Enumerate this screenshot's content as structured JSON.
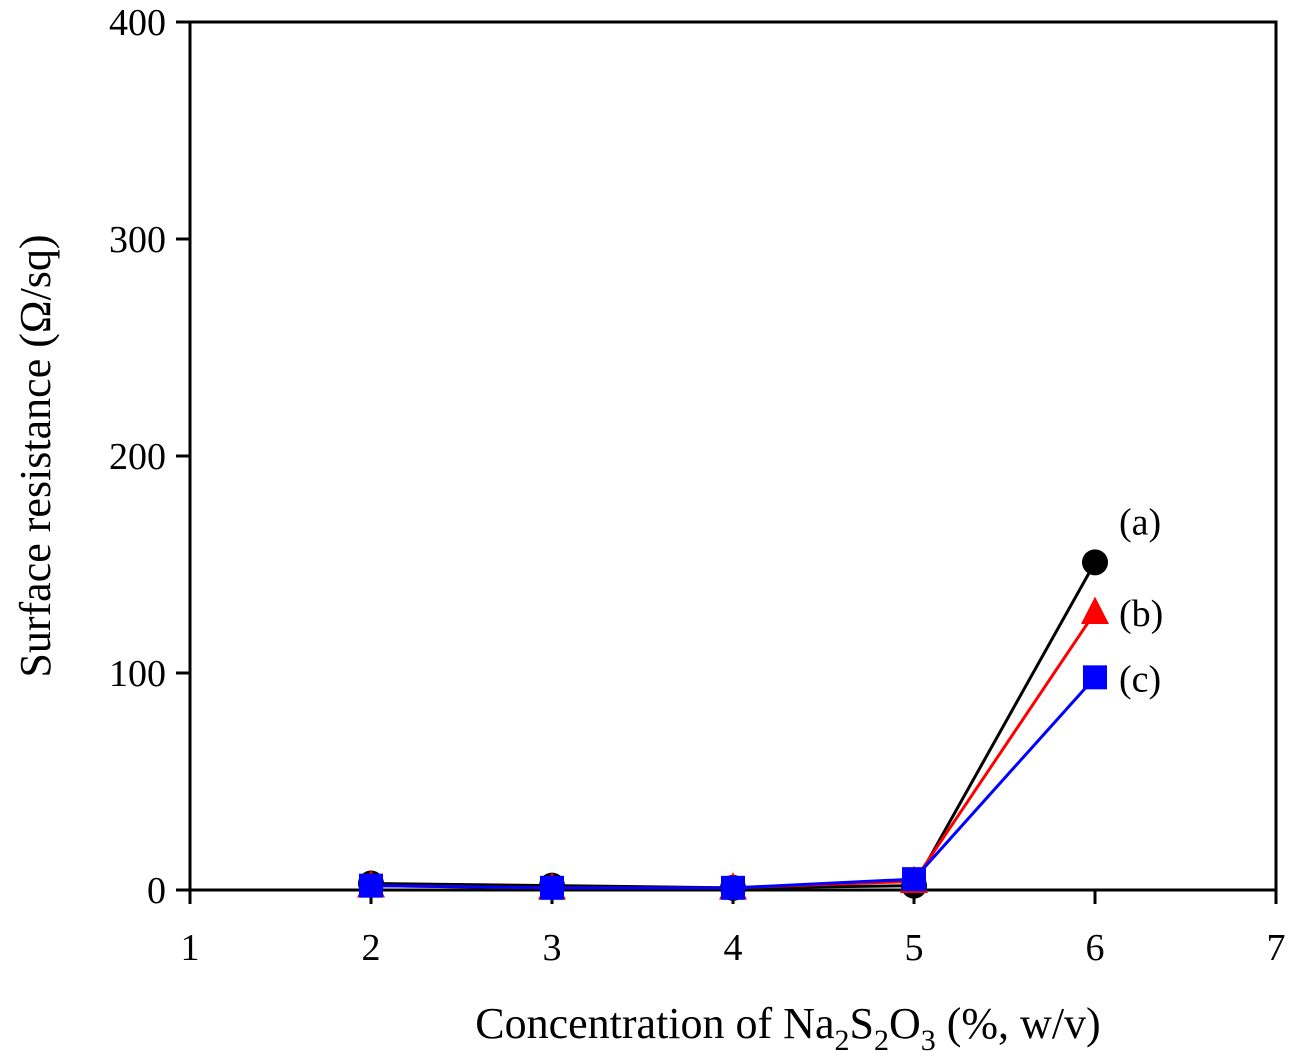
{
  "chart_data": {
    "type": "line",
    "title": "",
    "xlabel": {
      "parts": [
        {
          "text": "Concentration of Na",
          "sub": false
        },
        {
          "text": "2",
          "sub": true
        },
        {
          "text": "S",
          "sub": false
        },
        {
          "text": "2",
          "sub": true
        },
        {
          "text": "O",
          "sub": false
        },
        {
          "text": "3",
          "sub": true
        },
        {
          "text": " (%, w/v)",
          "sub": false
        }
      ]
    },
    "ylabel": "Surface resistance (Ω/sq)",
    "xlim": [
      1,
      7
    ],
    "ylim": [
      0,
      400
    ],
    "x_ticks": [
      "1",
      "2",
      "3",
      "4",
      "5",
      "6",
      "7"
    ],
    "y_ticks": [
      "0",
      "100",
      "200",
      "300",
      "400"
    ],
    "grid": false,
    "x": [
      2,
      3,
      4,
      5,
      6
    ],
    "series": [
      {
        "name": "(a)",
        "marker": "circle",
        "color": "#000000",
        "values": [
          3,
          2,
          1,
          2,
          151
        ]
      },
      {
        "name": "(b)",
        "marker": "triangle",
        "color": "#ff0000",
        "values": [
          2,
          1,
          1,
          4,
          128
        ]
      },
      {
        "name": "(c)",
        "marker": "square",
        "color": "#0000ff",
        "values": [
          2,
          1,
          1,
          5,
          98
        ]
      }
    ]
  }
}
